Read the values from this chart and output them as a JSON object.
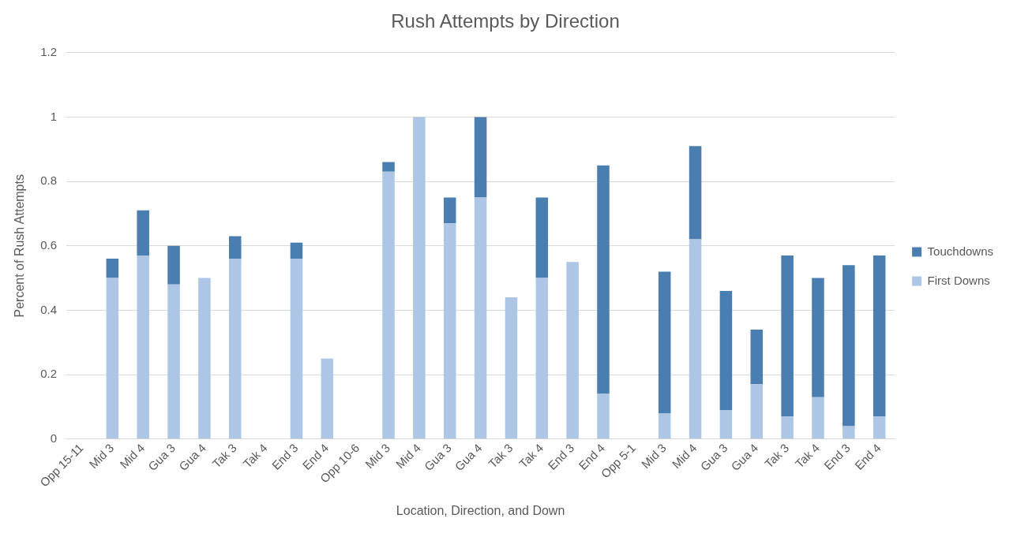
{
  "chart_data": {
    "type": "bar",
    "title": "Rush Attempts by Direction",
    "xlabel": "Location, Direction, and Down",
    "ylabel": "Percent of Rush Attempts",
    "categories": [
      "Opp 15-11",
      "Mid 3",
      "Mid 4",
      "Gua 3",
      "Gua 4",
      "Tak 3",
      "Tak 4",
      "End 3",
      "End 4",
      "Opp 10-6",
      "Mid 3",
      "Mid 4",
      "Gua 3",
      "Gua 4",
      "Tak 3",
      "Tak 4",
      "End 3",
      "End 4",
      "Opp 5-1",
      "Mid 3",
      "Mid 4",
      "Gua 3",
      "Gua 4",
      "Tak 3",
      "Tak 4",
      "End 3",
      "End 4"
    ],
    "series": [
      {
        "name": "First Downs",
        "color": "#aec6e6",
        "values": [
          0,
          0.5,
          0.57,
          0.48,
          0.5,
          0.56,
          0,
          0.56,
          0.25,
          0,
          0.83,
          1,
          0.67,
          0.75,
          0.44,
          0.5,
          0.55,
          0.14,
          0,
          0.08,
          0.62,
          0.09,
          0.17,
          0.07,
          0.13,
          0.04,
          0.07
        ]
      },
      {
        "name": "Touchdowns",
        "color": "#4a7eb0",
        "values": [
          0,
          0.06,
          0.14,
          0.12,
          0,
          0.07,
          0,
          0.05,
          0,
          0,
          0.03,
          0,
          0.08,
          0.25,
          0,
          0.25,
          0,
          0.71,
          0,
          0.44,
          0.29,
          0.37,
          0.17,
          0.5,
          0.37,
          0.5,
          0.5
        ]
      }
    ],
    "stacked": true,
    "ylim": [
      0,
      1.2
    ],
    "yticks": [
      0,
      0.2,
      0.4,
      0.6,
      0.8,
      1,
      1.2
    ],
    "grid": "y",
    "legend": "right"
  }
}
